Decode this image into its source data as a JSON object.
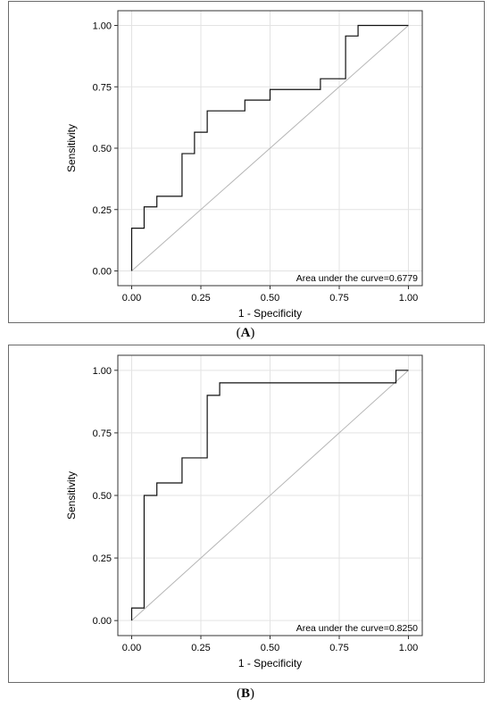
{
  "chart_data": [
    {
      "type": "line",
      "panel_label": "A",
      "xlabel": "1 - Specificity",
      "ylabel": "Sensitivity",
      "xlim": [
        -0.05,
        1.05
      ],
      "ylim": [
        -0.06,
        1.06
      ],
      "x_ticks": [
        "0.00",
        "0.25",
        "0.50",
        "0.75",
        "1.00"
      ],
      "y_ticks": [
        "0.00",
        "0.25",
        "0.50",
        "0.75",
        "1.00"
      ],
      "grid": true,
      "annotation": "Area under the curve=0.6779",
      "series": [
        {
          "x": [
            0,
            0,
            0.045,
            0.045,
            0.091,
            0.091,
            0.182,
            0.182,
            0.227,
            0.227,
            0.273,
            0.273,
            0.409,
            0.409,
            0.5,
            0.5,
            0.682,
            0.682,
            0.773,
            0.773,
            0.818,
            0.818,
            1.0
          ],
          "y": [
            0,
            0.174,
            0.174,
            0.261,
            0.261,
            0.304,
            0.304,
            0.478,
            0.478,
            0.565,
            0.565,
            0.652,
            0.652,
            0.696,
            0.696,
            0.739,
            0.739,
            0.783,
            0.783,
            0.957,
            0.957,
            1.0,
            1.0
          ]
        },
        {
          "x": [
            0,
            1
          ],
          "y": [
            0,
            1
          ]
        }
      ]
    },
    {
      "type": "line",
      "panel_label": "B",
      "xlabel": "1 - Specificity",
      "ylabel": "Sensitivity",
      "xlim": [
        -0.05,
        1.05
      ],
      "ylim": [
        -0.06,
        1.06
      ],
      "x_ticks": [
        "0.00",
        "0.25",
        "0.50",
        "0.75",
        "1.00"
      ],
      "y_ticks": [
        "0.00",
        "0.25",
        "0.50",
        "0.75",
        "1.00"
      ],
      "grid": true,
      "annotation": "Area under the curve=0.8250",
      "series": [
        {
          "x": [
            0,
            0,
            0.045,
            0.045,
            0.091,
            0.091,
            0.182,
            0.182,
            0.273,
            0.273,
            0.318,
            0.318,
            0.955,
            0.955,
            1.0,
            1.0
          ],
          "y": [
            0,
            0.05,
            0.05,
            0.5,
            0.5,
            0.55,
            0.55,
            0.65,
            0.65,
            0.9,
            0.9,
            0.95,
            0.95,
            1.0,
            1.0,
            1.0
          ]
        },
        {
          "x": [
            0,
            1
          ],
          "y": [
            0,
            1
          ]
        }
      ]
    }
  ],
  "captions": {
    "a": "A",
    "b": "B"
  }
}
